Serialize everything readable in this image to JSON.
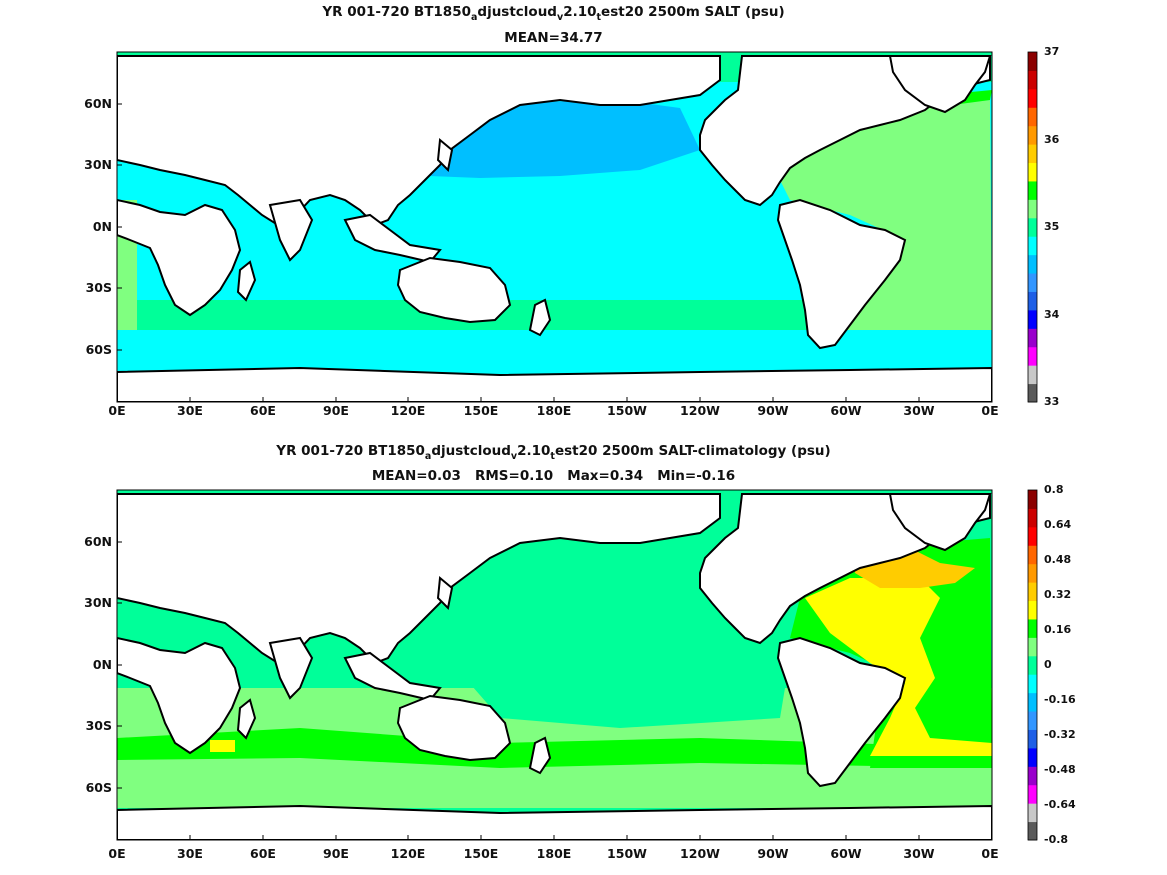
{
  "panels": [
    {
      "title_parts": [
        "YR 001-720 BT1850",
        "a",
        "djustcloud",
        "v",
        "2.10",
        "t",
        "est20 2500m SALT (psu)"
      ],
      "subtitle": "MEAN=34.77",
      "colorbar": {
        "tick_labels": [
          "37",
          "36",
          "35",
          "34",
          "33"
        ],
        "colors": [
          "#5a5a5a",
          "#c8c8c8",
          "#ff00ff",
          "#9900cc",
          "#0000ff",
          "#1e5fe6",
          "#3296ff",
          "#00bfff",
          "#00ffff",
          "#00ff99",
          "#80ff80",
          "#00ff00",
          "#ffff00",
          "#ffcc00",
          "#ff9900",
          "#ff6600",
          "#ff0000",
          "#cc0000",
          "#8b0000"
        ]
      }
    },
    {
      "title_parts": [
        "YR 001-720 BT1850",
        "a",
        "djustcloud",
        "v",
        "2.10",
        "t",
        "est20 2500m SALT-climatology (psu)"
      ],
      "subtitle": "MEAN=0.03   RMS=0.10   Max=0.34   Min=-0.16",
      "colorbar": {
        "tick_labels": [
          "0.8",
          "0.64",
          "0.48",
          "0.32",
          "0.16",
          "0",
          "-0.16",
          "-0.32",
          "-0.48",
          "-0.64",
          "-0.8"
        ],
        "colors": [
          "#5a5a5a",
          "#c8c8c8",
          "#ff00ff",
          "#9900cc",
          "#0000ff",
          "#1e5fe6",
          "#3296ff",
          "#00bfff",
          "#00ffff",
          "#00ff99",
          "#80ff80",
          "#00ff00",
          "#ffff00",
          "#ffcc00",
          "#ff9900",
          "#ff6600",
          "#ff0000",
          "#cc0000",
          "#8b0000"
        ]
      }
    }
  ],
  "axes": {
    "lon_labels": [
      "0E",
      "30E",
      "60E",
      "90E",
      "120E",
      "150E",
      "180E",
      "150W",
      "120W",
      "90W",
      "60W",
      "30W",
      "0E"
    ],
    "lat_labels": [
      "60N",
      "30N",
      "0N",
      "30S",
      "60S"
    ]
  },
  "fields": {
    "top": {
      "pacific_main": "#00ffff",
      "pacific_north": "#00bfff",
      "atlantic": "#80ff80",
      "atlantic_north": "#00ff00",
      "southern_band": "#00ff99",
      "indian": "#00ffff",
      "arctic": "#00ff99"
    },
    "bottom": {
      "pacific_main": "#00ff99",
      "atlantic_south": "#00ff00",
      "atlantic_core": "#ffff00",
      "atlantic_north": "#ffcc00",
      "southern": "#80ff80",
      "southern_band": "#00ff00",
      "indian": "#00ff99",
      "arctic": "#00ff99"
    }
  }
}
